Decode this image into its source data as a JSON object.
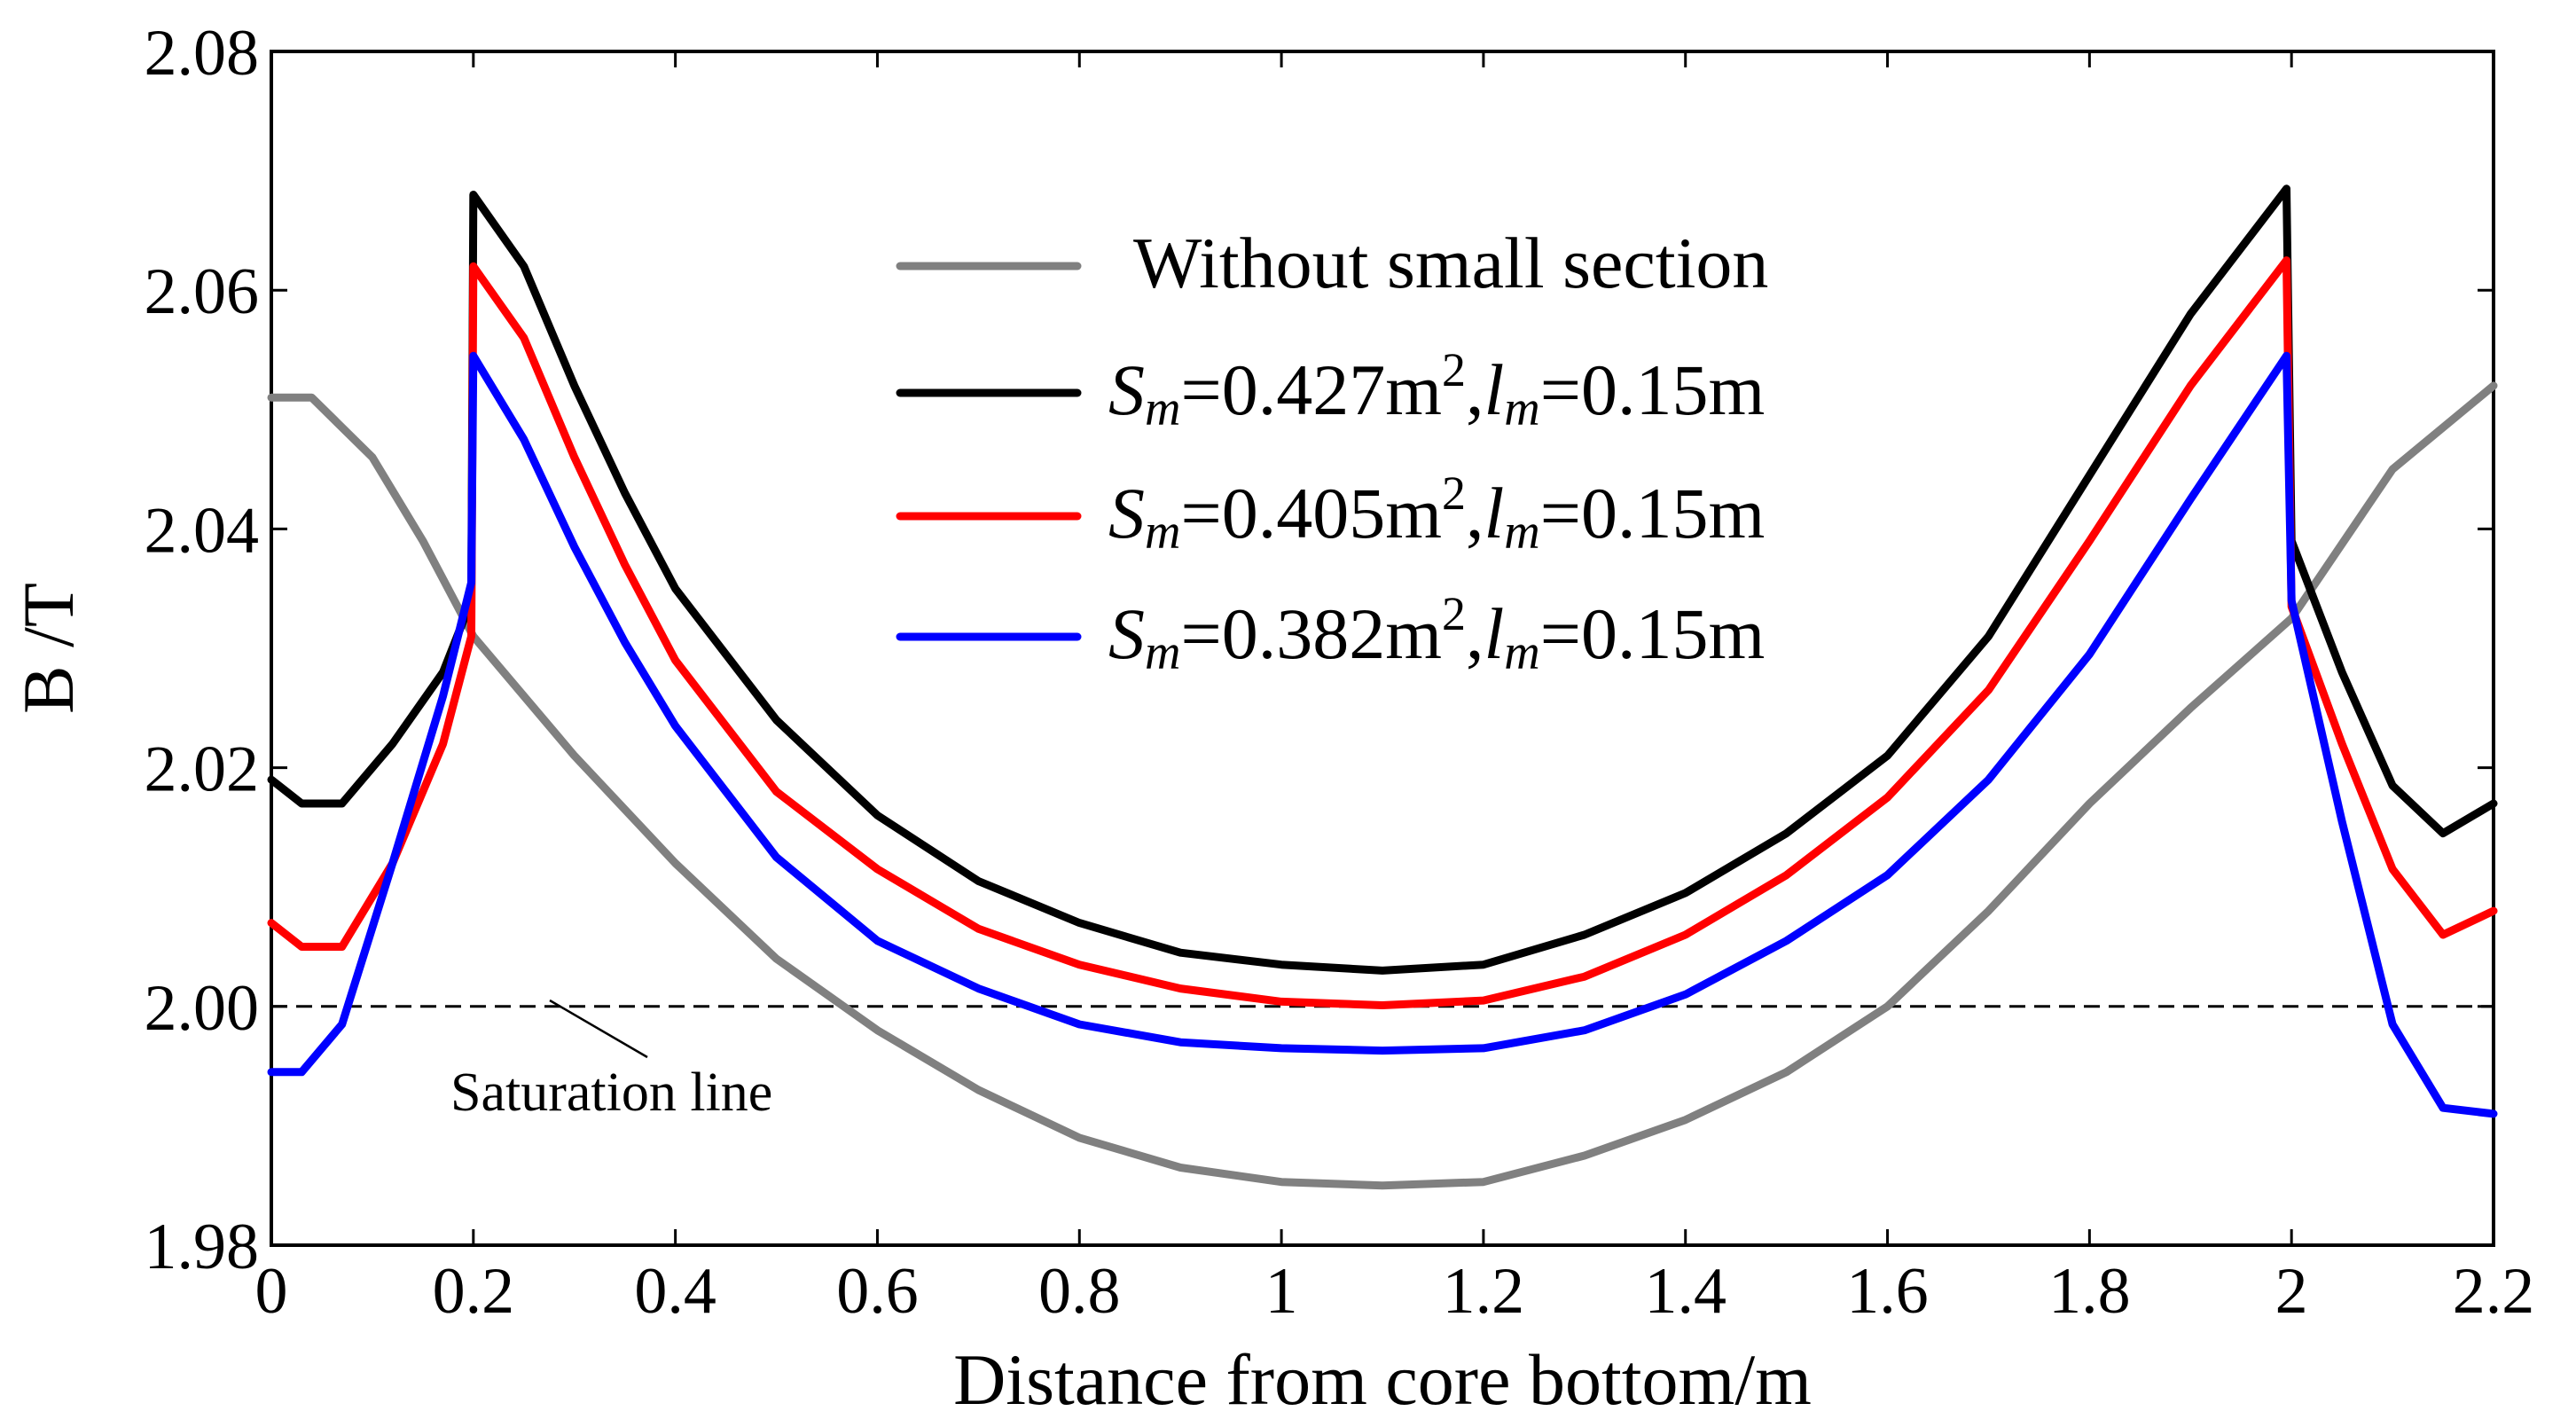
{
  "chart_data": {
    "type": "line",
    "title": "",
    "xlabel": "Distance from core bottom/m",
    "ylabel": "B /T",
    "xlim": [
      0,
      2.2
    ],
    "ylim": [
      1.98,
      2.08
    ],
    "xticks": [
      0,
      0.2,
      0.4,
      0.6,
      0.8,
      1,
      1.2,
      1.4,
      1.6,
      1.8,
      2,
      2.2
    ],
    "xtick_labels": [
      "0",
      "0.2",
      "0.4",
      "0.6",
      "0.8",
      "1",
      "1.2",
      "1.4",
      "1.6",
      "1.8",
      "2",
      "2.2"
    ],
    "yticks": [
      1.98,
      2.0,
      2.02,
      2.04,
      2.06,
      2.08
    ],
    "ytick_labels": [
      "1.98",
      "2.00",
      "2.02",
      "2.04",
      "2.06",
      "2.08"
    ],
    "grid": false,
    "legend_position": "top-center",
    "annotations": [
      {
        "text": "Saturation line",
        "type": "hline",
        "y": 2.0,
        "style": "dashed",
        "color": "#000000"
      }
    ],
    "series": [
      {
        "name": "Without small section",
        "legend": {
          "main": "Without small section"
        },
        "color": "#808080",
        "points": [
          [
            0,
            2.051
          ],
          [
            0.04,
            2.051
          ],
          [
            0.1,
            2.046
          ],
          [
            0.15,
            2.039
          ],
          [
            0.2,
            2.031
          ],
          [
            0.3,
            2.021
          ],
          [
            0.4,
            2.012
          ],
          [
            0.5,
            2.004
          ],
          [
            0.6,
            1.998
          ],
          [
            0.7,
            1.993
          ],
          [
            0.8,
            1.989
          ],
          [
            0.9,
            1.9865
          ],
          [
            1.0,
            1.9853
          ],
          [
            1.1,
            1.985
          ],
          [
            1.2,
            1.9853
          ],
          [
            1.3,
            1.9875
          ],
          [
            1.4,
            1.9905
          ],
          [
            1.5,
            1.9945
          ],
          [
            1.6,
            2.0
          ],
          [
            1.7,
            2.008
          ],
          [
            1.8,
            2.017
          ],
          [
            1.9,
            2.025
          ],
          [
            2.0,
            2.0325
          ],
          [
            2.1,
            2.045
          ],
          [
            2.2,
            2.052
          ]
        ]
      },
      {
        "name": "Sm=0.427m2,lm=0.15m",
        "legend": {
          "s": "S",
          "m1": "m",
          "eq1": "=0.427m",
          "sup": "2",
          "comma": ",",
          "l": "l",
          "m2": "m",
          "eq2": "=0.15m"
        },
        "color": "#000000",
        "points": [
          [
            0,
            2.019
          ],
          [
            0.03,
            2.017
          ],
          [
            0.07,
            2.017
          ],
          [
            0.12,
            2.022
          ],
          [
            0.17,
            2.028
          ],
          [
            0.198,
            2.034
          ],
          [
            0.2,
            2.068
          ],
          [
            0.25,
            2.062
          ],
          [
            0.3,
            2.052
          ],
          [
            0.35,
            2.043
          ],
          [
            0.4,
            2.035
          ],
          [
            0.5,
            2.024
          ],
          [
            0.6,
            2.016
          ],
          [
            0.7,
            2.0105
          ],
          [
            0.8,
            2.007
          ],
          [
            0.9,
            2.0045
          ],
          [
            1.0,
            2.0035
          ],
          [
            1.1,
            2.003
          ],
          [
            1.2,
            2.0035
          ],
          [
            1.3,
            2.006
          ],
          [
            1.4,
            2.0095
          ],
          [
            1.5,
            2.0145
          ],
          [
            1.6,
            2.021
          ],
          [
            1.7,
            2.031
          ],
          [
            1.8,
            2.0445
          ],
          [
            1.9,
            2.058
          ],
          [
            1.995,
            2.0685
          ],
          [
            2.0,
            2.039
          ],
          [
            2.05,
            2.028
          ],
          [
            2.1,
            2.0185
          ],
          [
            2.15,
            2.0145
          ],
          [
            2.2,
            2.017
          ]
        ]
      },
      {
        "name": "Sm=0.405m2,lm=0.15m",
        "legend": {
          "s": "S",
          "m1": "m",
          "eq1": "=0.405m",
          "sup": "2",
          "comma": ",",
          "l": "l",
          "m2": "m",
          "eq2": "=0.15m"
        },
        "color": "#ff0000",
        "points": [
          [
            0,
            2.007
          ],
          [
            0.03,
            2.005
          ],
          [
            0.07,
            2.005
          ],
          [
            0.12,
            2.012
          ],
          [
            0.17,
            2.022
          ],
          [
            0.198,
            2.031
          ],
          [
            0.2,
            2.062
          ],
          [
            0.25,
            2.056
          ],
          [
            0.3,
            2.046
          ],
          [
            0.35,
            2.037
          ],
          [
            0.4,
            2.029
          ],
          [
            0.5,
            2.018
          ],
          [
            0.6,
            2.0115
          ],
          [
            0.7,
            2.0065
          ],
          [
            0.8,
            2.0035
          ],
          [
            0.9,
            2.0015
          ],
          [
            1.0,
            2.0004
          ],
          [
            1.1,
            2.0001
          ],
          [
            1.2,
            2.0005
          ],
          [
            1.3,
            2.0025
          ],
          [
            1.4,
            2.006
          ],
          [
            1.5,
            2.011
          ],
          [
            1.6,
            2.0175
          ],
          [
            1.7,
            2.0265
          ],
          [
            1.8,
            2.039
          ],
          [
            1.9,
            2.052
          ],
          [
            1.995,
            2.0625
          ],
          [
            2.0,
            2.0335
          ],
          [
            2.05,
            2.022
          ],
          [
            2.1,
            2.0115
          ],
          [
            2.15,
            2.006
          ],
          [
            2.2,
            2.008
          ]
        ]
      },
      {
        "name": "Sm=0.382m2,lm=0.15m",
        "legend": {
          "s": "S",
          "m1": "m",
          "eq1": "=0.382m",
          "sup": "2",
          "comma": ",",
          "l": "l",
          "m2": "m",
          "eq2": "=0.15m"
        },
        "color": "#0000ff",
        "points": [
          [
            0,
            1.9945
          ],
          [
            0.03,
            1.9945
          ],
          [
            0.07,
            1.9985
          ],
          [
            0.12,
            2.012
          ],
          [
            0.17,
            2.026
          ],
          [
            0.198,
            2.0355
          ],
          [
            0.2,
            2.0545
          ],
          [
            0.25,
            2.0475
          ],
          [
            0.3,
            2.0385
          ],
          [
            0.35,
            2.0305
          ],
          [
            0.4,
            2.0235
          ],
          [
            0.5,
            2.0125
          ],
          [
            0.6,
            2.0055
          ],
          [
            0.7,
            2.0015
          ],
          [
            0.8,
            1.9985
          ],
          [
            0.9,
            1.997
          ],
          [
            1.0,
            1.9965
          ],
          [
            1.1,
            1.9963
          ],
          [
            1.2,
            1.9965
          ],
          [
            1.3,
            1.998
          ],
          [
            1.4,
            2.001
          ],
          [
            1.5,
            2.0055
          ],
          [
            1.6,
            2.011
          ],
          [
            1.7,
            2.019
          ],
          [
            1.8,
            2.0295
          ],
          [
            1.9,
            2.0425
          ],
          [
            1.995,
            2.0545
          ],
          [
            2.0,
            2.034
          ],
          [
            2.05,
            2.0155
          ],
          [
            2.1,
            1.9985
          ],
          [
            2.15,
            1.9915
          ],
          [
            2.2,
            1.991
          ]
        ]
      }
    ]
  }
}
